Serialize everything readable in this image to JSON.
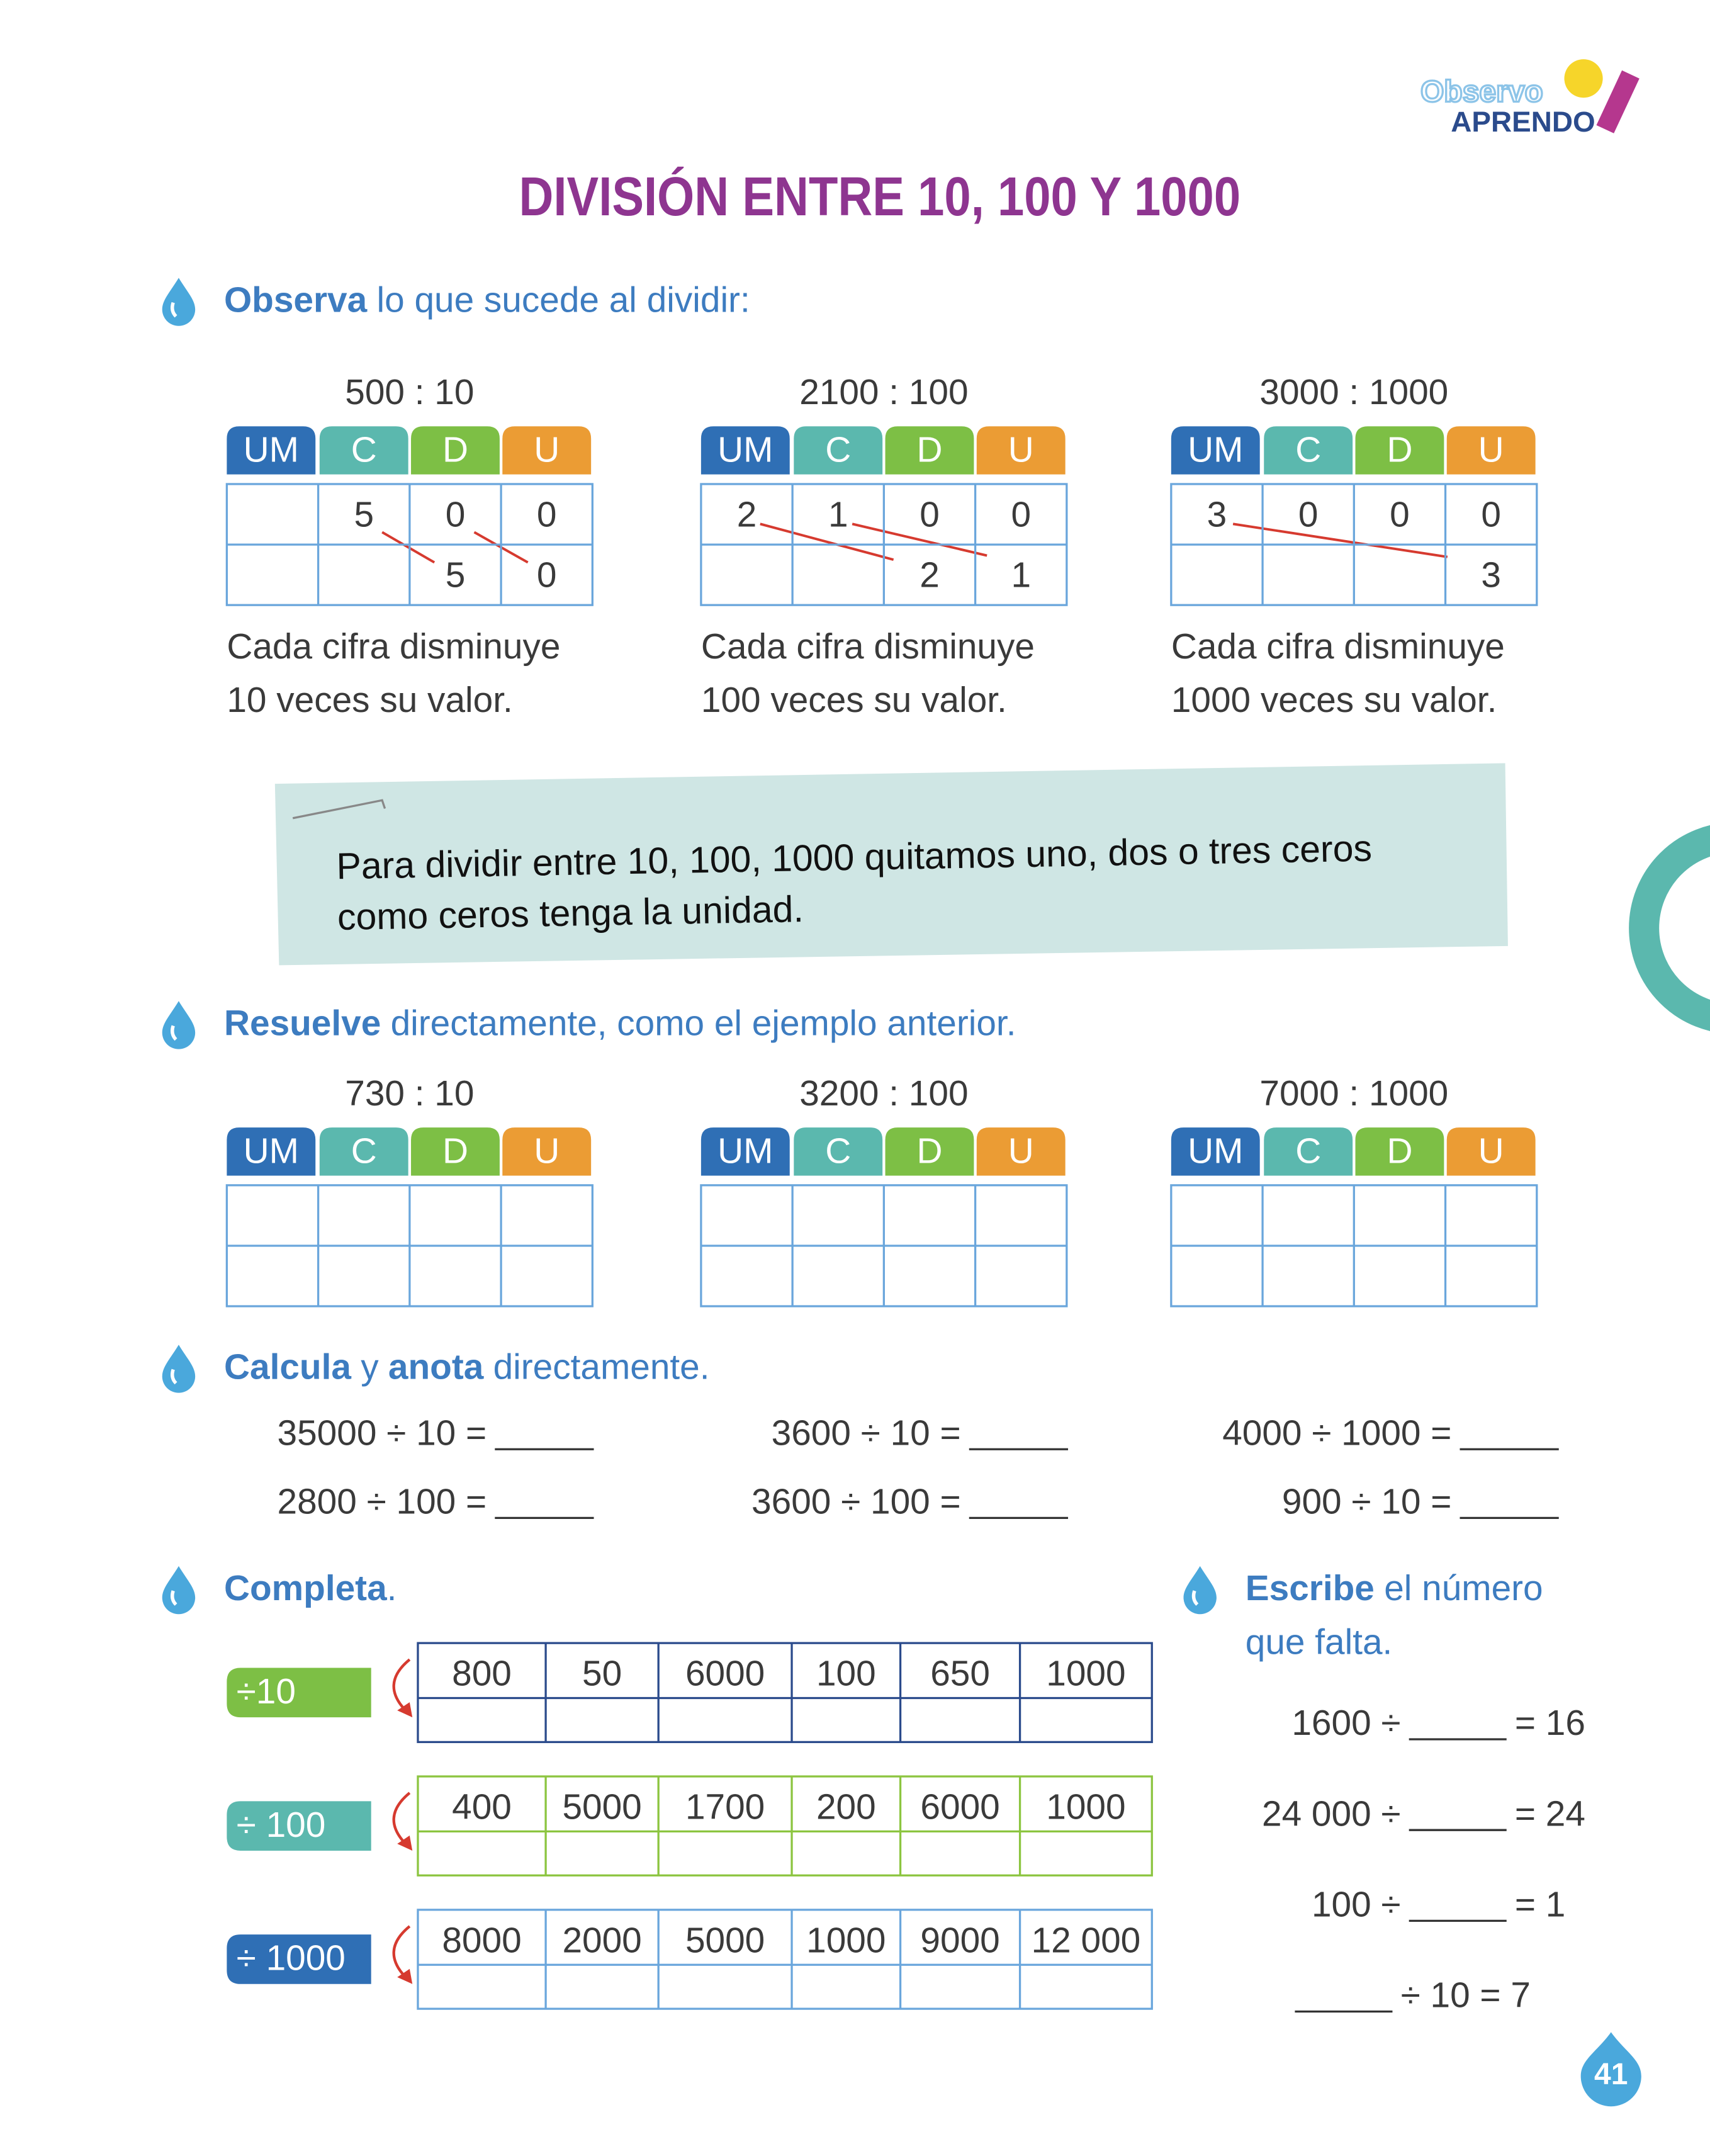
{
  "header": {
    "logo_top": "Observo",
    "logo_bottom": "Aprendo",
    "title": "DIVISIÓN ENTRE 10, 100 Y 1000"
  },
  "observe": {
    "instruction": [
      {
        "text": "Observa",
        "bold": true
      },
      {
        "text": "lo que sucede al dividir:"
      }
    ],
    "place_headers": [
      "UM",
      "C",
      "D",
      "U"
    ],
    "examples": [
      {
        "operation": "500 : 10",
        "top": [
          null,
          "5",
          "0",
          "0"
        ],
        "bottom": [
          null,
          null,
          "5",
          "0"
        ],
        "caption": [
          "Cada cifra disminuye",
          "10 veces su valor."
        ]
      },
      {
        "operation": "2100 : 100",
        "top": [
          "2",
          "1",
          "0",
          "0"
        ],
        "bottom": [
          null,
          null,
          "2",
          "1"
        ],
        "caption": [
          "Cada cifra disminuye",
          "100 veces su valor."
        ]
      },
      {
        "operation": "3000 : 1000",
        "top": [
          "3",
          "0",
          "0",
          "0"
        ],
        "bottom": [
          null,
          null,
          null,
          "3"
        ],
        "caption": [
          "Cada cifra disminuye",
          "1000 veces su valor."
        ]
      }
    ]
  },
  "rule_note": [
    "Para dividir entre 10, 100, 1000 quitamos uno, dos o tres ceros",
    "como ceros tenga la unidad."
  ],
  "resolve": {
    "instruction": [
      {
        "text": "Resuelve",
        "bold": true
      },
      {
        "text": "directamente, como el ejemplo anterior."
      }
    ],
    "operations": [
      "730 : 10",
      "3200 : 100",
      "7000 : 1000"
    ]
  },
  "calculate": {
    "instruction": [
      {
        "text": "Calcula",
        "bold": true
      },
      {
        "text": "y"
      },
      {
        "text": "anota",
        "bold": true
      },
      {
        "text": "directamente."
      }
    ],
    "expressions": [
      "35000 ÷ 10 =",
      "3600 ÷ 10 =",
      "4000 ÷ 1000 =",
      "2800 ÷ 100 =",
      "3600 ÷ 100 =",
      "900 ÷ 10 ="
    ]
  },
  "complete": {
    "instruction": [
      {
        "text": "Completa",
        "bold": true
      },
      {
        "text": "."
      }
    ],
    "rows": [
      {
        "operator": "÷10",
        "color": "#7dbf45",
        "border": "#2b4b8c",
        "values": [
          "800",
          "50",
          "6000",
          "100",
          "650",
          "1000"
        ]
      },
      {
        "operator": "÷ 100",
        "color": "#5bb8ae",
        "border": "#8cc540",
        "values": [
          "400",
          "5000",
          "1700",
          "200",
          "6000",
          "1000"
        ]
      },
      {
        "operator": "÷ 1000",
        "color": "#2f6fb5",
        "border": "#6aa6dc",
        "values": [
          "8000",
          "2000",
          "5000",
          "1000",
          "9000",
          "12 000"
        ]
      }
    ]
  },
  "missing": {
    "instruction": [
      {
        "text": "Escribe",
        "bold": true
      },
      {
        "text": "el número"
      }
    ],
    "instruction_line2": "que falta.",
    "equations": [
      {
        "before": "1600 ÷",
        "after": "= 16"
      },
      {
        "before": "24 000 ÷",
        "after": "= 24"
      },
      {
        "before": "100 ÷",
        "after": "= 1"
      },
      {
        "after": "÷ 10 = 7"
      }
    ]
  },
  "page_number": "41"
}
